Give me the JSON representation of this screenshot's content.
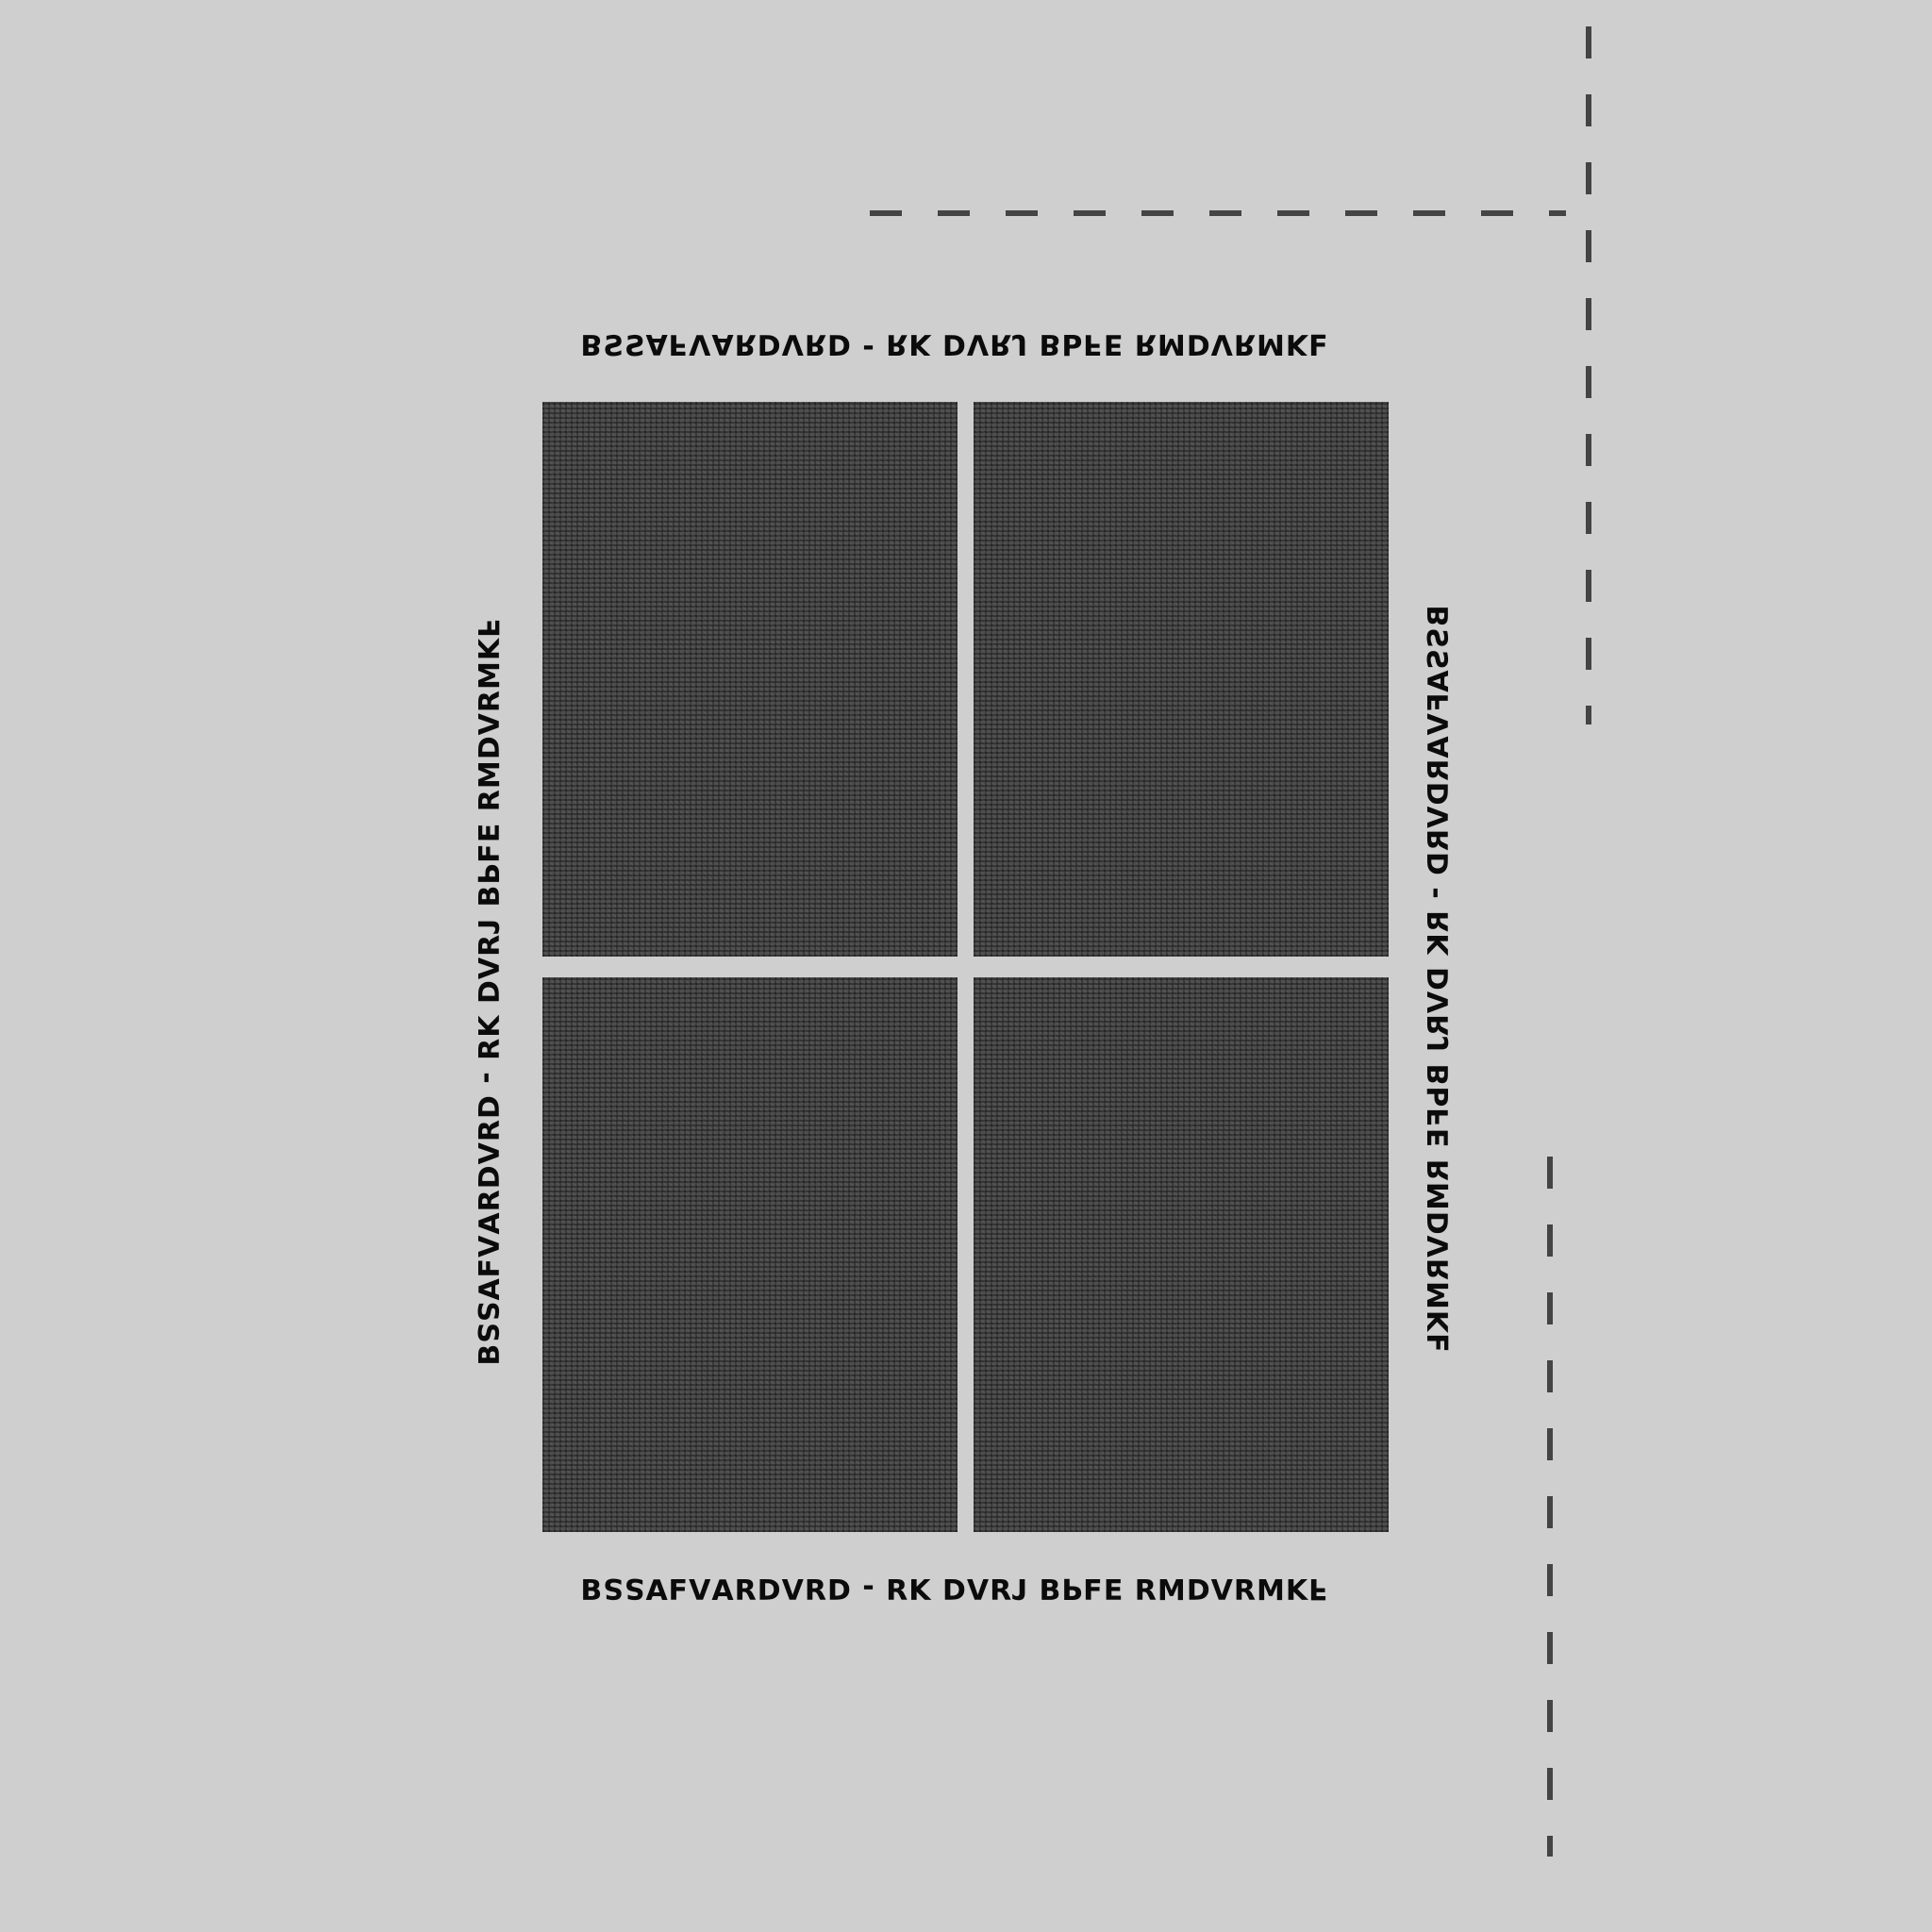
{
  "colors": {
    "background": "#cfcfcf",
    "panel": "#3c3c3c",
    "dash": "#444444",
    "text": "#0b0b0b"
  },
  "panels": [
    {
      "name": "panel-top-left"
    },
    {
      "name": "panel-top-right"
    },
    {
      "name": "panel-bottom-left"
    },
    {
      "name": "panel-bottom-right"
    }
  ],
  "captions": {
    "top": "ꟻꓘꟽꓤꓥꓷꟽꓤ ꓱꓞꟼꓭ ꓩꓤꓥꓷ ꓘꓤ - ꓷꓤꓥꓷꓤꓯꓥꓞꓯꓢꓢꓭ",
    "bottom": "ꟻꓘꟽꓤꓥꓷꟽꓤ ꓱꓞꟼꓭ ꓩꓤꓥꓷ ꓘꓤ - ꓷꓤꓥꓷꓤꓯꓥꓞꓯꓢꓢꓭ",
    "left": "ꟻꓘꟽꓤꓥꓷꟽꓤ ꓱꓞꟼꓭ ꓩꓤꓥꓷ ꓘꓤ - ꓷꓤꓥꓷꓤꓯꓥꓞꓯꓢꓢꓭ",
    "right": "ꟻꓘꟽꓤꓥꓷꟽꓤ ꓱꓞꟼꓭ ꓩꓤꓥꓷ ꓘꓤ - ꓷꓤꓥꓷꓤꓯꓥꓞꓯꓢꓢꓭ"
  }
}
